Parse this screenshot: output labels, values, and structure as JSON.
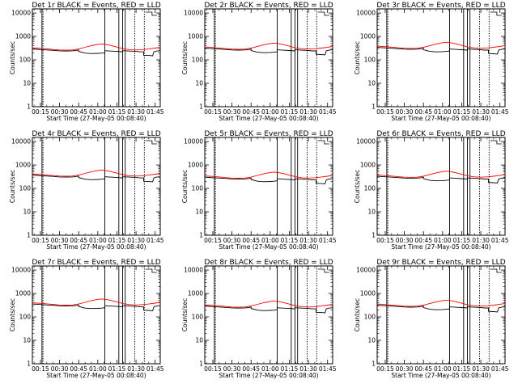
{
  "chart_data": [
    {
      "type": "line",
      "title": "Det 1r BLACK = Events, RED = LLD",
      "xlabel": "Start Time (27-May-05 00:08:40)",
      "ylabel": "Counts/sec"
    },
    {
      "type": "line",
      "title": "Det 2r BLACK = Events, RED = LLD",
      "xlabel": "Start Time (27-May-05 00:08:40)",
      "ylabel": "Counts/sec"
    },
    {
      "type": "line",
      "title": "Det 3r BLACK = Events, RED = LLD",
      "xlabel": "Start Time (27-May-05 00:08:40)",
      "ylabel": "Counts/sec"
    },
    {
      "type": "line",
      "title": "Det 4r BLACK = Events, RED = LLD",
      "xlabel": "Start Time (27-May-05 00:08:40)",
      "ylabel": "Counts/sec"
    },
    {
      "type": "line",
      "title": "Det 5r BLACK = Events, RED = LLD",
      "xlabel": "Start Time (27-May-05 00:08:40)",
      "ylabel": "Counts/sec"
    },
    {
      "type": "line",
      "title": "Det 6r BLACK = Events, RED = LLD",
      "xlabel": "Start Time (27-May-05 00:08:40)",
      "ylabel": "Counts/sec"
    },
    {
      "type": "line",
      "title": "Det 7r BLACK = Events, RED = LLD",
      "xlabel": "Start Time (27-May-05 00:08:40)",
      "ylabel": "Counts/sec"
    },
    {
      "type": "line",
      "title": "Det 8r BLACK = Events, RED = LLD",
      "xlabel": "Start Time (27-May-05 00:08:40)",
      "ylabel": "Counts/sec"
    },
    {
      "type": "line",
      "title": "Det 9r BLACK = Events, RED = LLD",
      "xlabel": "Start Time (27-May-05 00:08:40)",
      "ylabel": "Counts/sec"
    }
  ],
  "shared": {
    "x_ticks": [
      "00:15",
      "00:30",
      "00:45",
      "01:00",
      "01:15",
      "01:30",
      "01:45"
    ],
    "x_tick_minutes": [
      15,
      30,
      45,
      60,
      75,
      90,
      105
    ],
    "xlim_minutes": [
      8.67,
      109
    ],
    "y_ticks": [
      "1",
      "10",
      "100",
      "1000",
      "10000"
    ],
    "y_tick_values": [
      1,
      10,
      100,
      1000,
      10000
    ],
    "ylim": [
      1,
      15000
    ],
    "y_scale": "log",
    "solid_markers_minutes": [
      16.2,
      65.5,
      76.5,
      79.5,
      81.5
    ],
    "dotted_markers_minutes": [
      17.0,
      89.0,
      96.5
    ],
    "series": [
      {
        "name": "Events",
        "color": "#000000",
        "points": [
          [
            8.67,
            330
          ],
          [
            12,
            320
          ],
          [
            16,
            310
          ],
          [
            20,
            300
          ],
          [
            25,
            290
          ],
          [
            30,
            275
          ],
          [
            35,
            270
          ],
          [
            40,
            275
          ],
          [
            43,
            285
          ],
          [
            45,
            300
          ],
          [
            45,
            260
          ],
          [
            50,
            220
          ],
          [
            55,
            210
          ],
          [
            60,
            215
          ],
          [
            63,
            220
          ],
          [
            65.5,
            230
          ],
          [
            65.5,
            280
          ],
          [
            70,
            270
          ],
          [
            75,
            260
          ],
          [
            79.5,
            250
          ],
          [
            79.5,
            280
          ],
          [
            85,
            270
          ],
          [
            90,
            260
          ],
          [
            93,
            250
          ],
          [
            96,
            250
          ],
          [
            96,
            180
          ],
          [
            100,
            175
          ],
          [
            103,
            170
          ],
          [
            104,
            250
          ],
          [
            106,
            270
          ],
          [
            109,
            280
          ]
        ]
      },
      {
        "name": "LLD",
        "color": "#ff0000",
        "points": [
          [
            8.67,
            370
          ],
          [
            12,
            360
          ],
          [
            16,
            350
          ],
          [
            20,
            335
          ],
          [
            25,
            315
          ],
          [
            30,
            300
          ],
          [
            35,
            295
          ],
          [
            40,
            300
          ],
          [
            45,
            330
          ],
          [
            50,
            390
          ],
          [
            55,
            460
          ],
          [
            60,
            520
          ],
          [
            63,
            540
          ],
          [
            66,
            520
          ],
          [
            70,
            470
          ],
          [
            75,
            400
          ],
          [
            80,
            340
          ],
          [
            85,
            310
          ],
          [
            90,
            300
          ],
          [
            95,
            310
          ],
          [
            100,
            330
          ],
          [
            105,
            360
          ],
          [
            109,
            390
          ]
        ]
      }
    ]
  }
}
